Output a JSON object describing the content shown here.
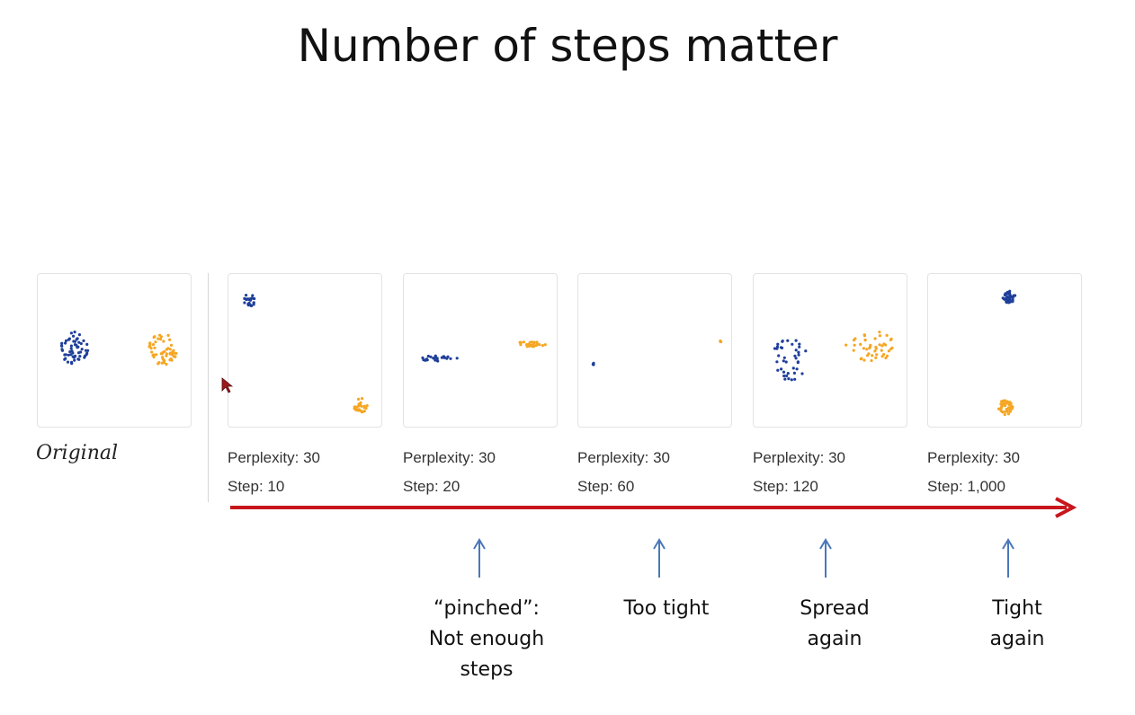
{
  "title": "Number of steps matter",
  "original_label": "Original",
  "colors": {
    "blue": "#1f3f9a",
    "orange": "#f5a623",
    "arrow": "#c8161d",
    "note_arrow": "#4a78b8"
  },
  "panels": [
    {
      "id": "p1",
      "perplexity": "Perplexity: 30",
      "step": "Step: 10"
    },
    {
      "id": "p2",
      "perplexity": "Perplexity: 30",
      "step": "Step: 20"
    },
    {
      "id": "p3",
      "perplexity": "Perplexity: 30",
      "step": "Step: 60"
    },
    {
      "id": "p4",
      "perplexity": "Perplexity: 30",
      "step": "Step: 120"
    },
    {
      "id": "p5",
      "perplexity": "Perplexity: 30",
      "step": "Step: 1,000"
    }
  ],
  "notes": [
    {
      "line1": "“pinched”:",
      "line2": "Not enough",
      "line3": "steps"
    },
    {
      "line1": "Too tight"
    },
    {
      "line1": "Spread",
      "line2": "again"
    },
    {
      "line1": "Tight",
      "line2": "again"
    }
  ]
}
